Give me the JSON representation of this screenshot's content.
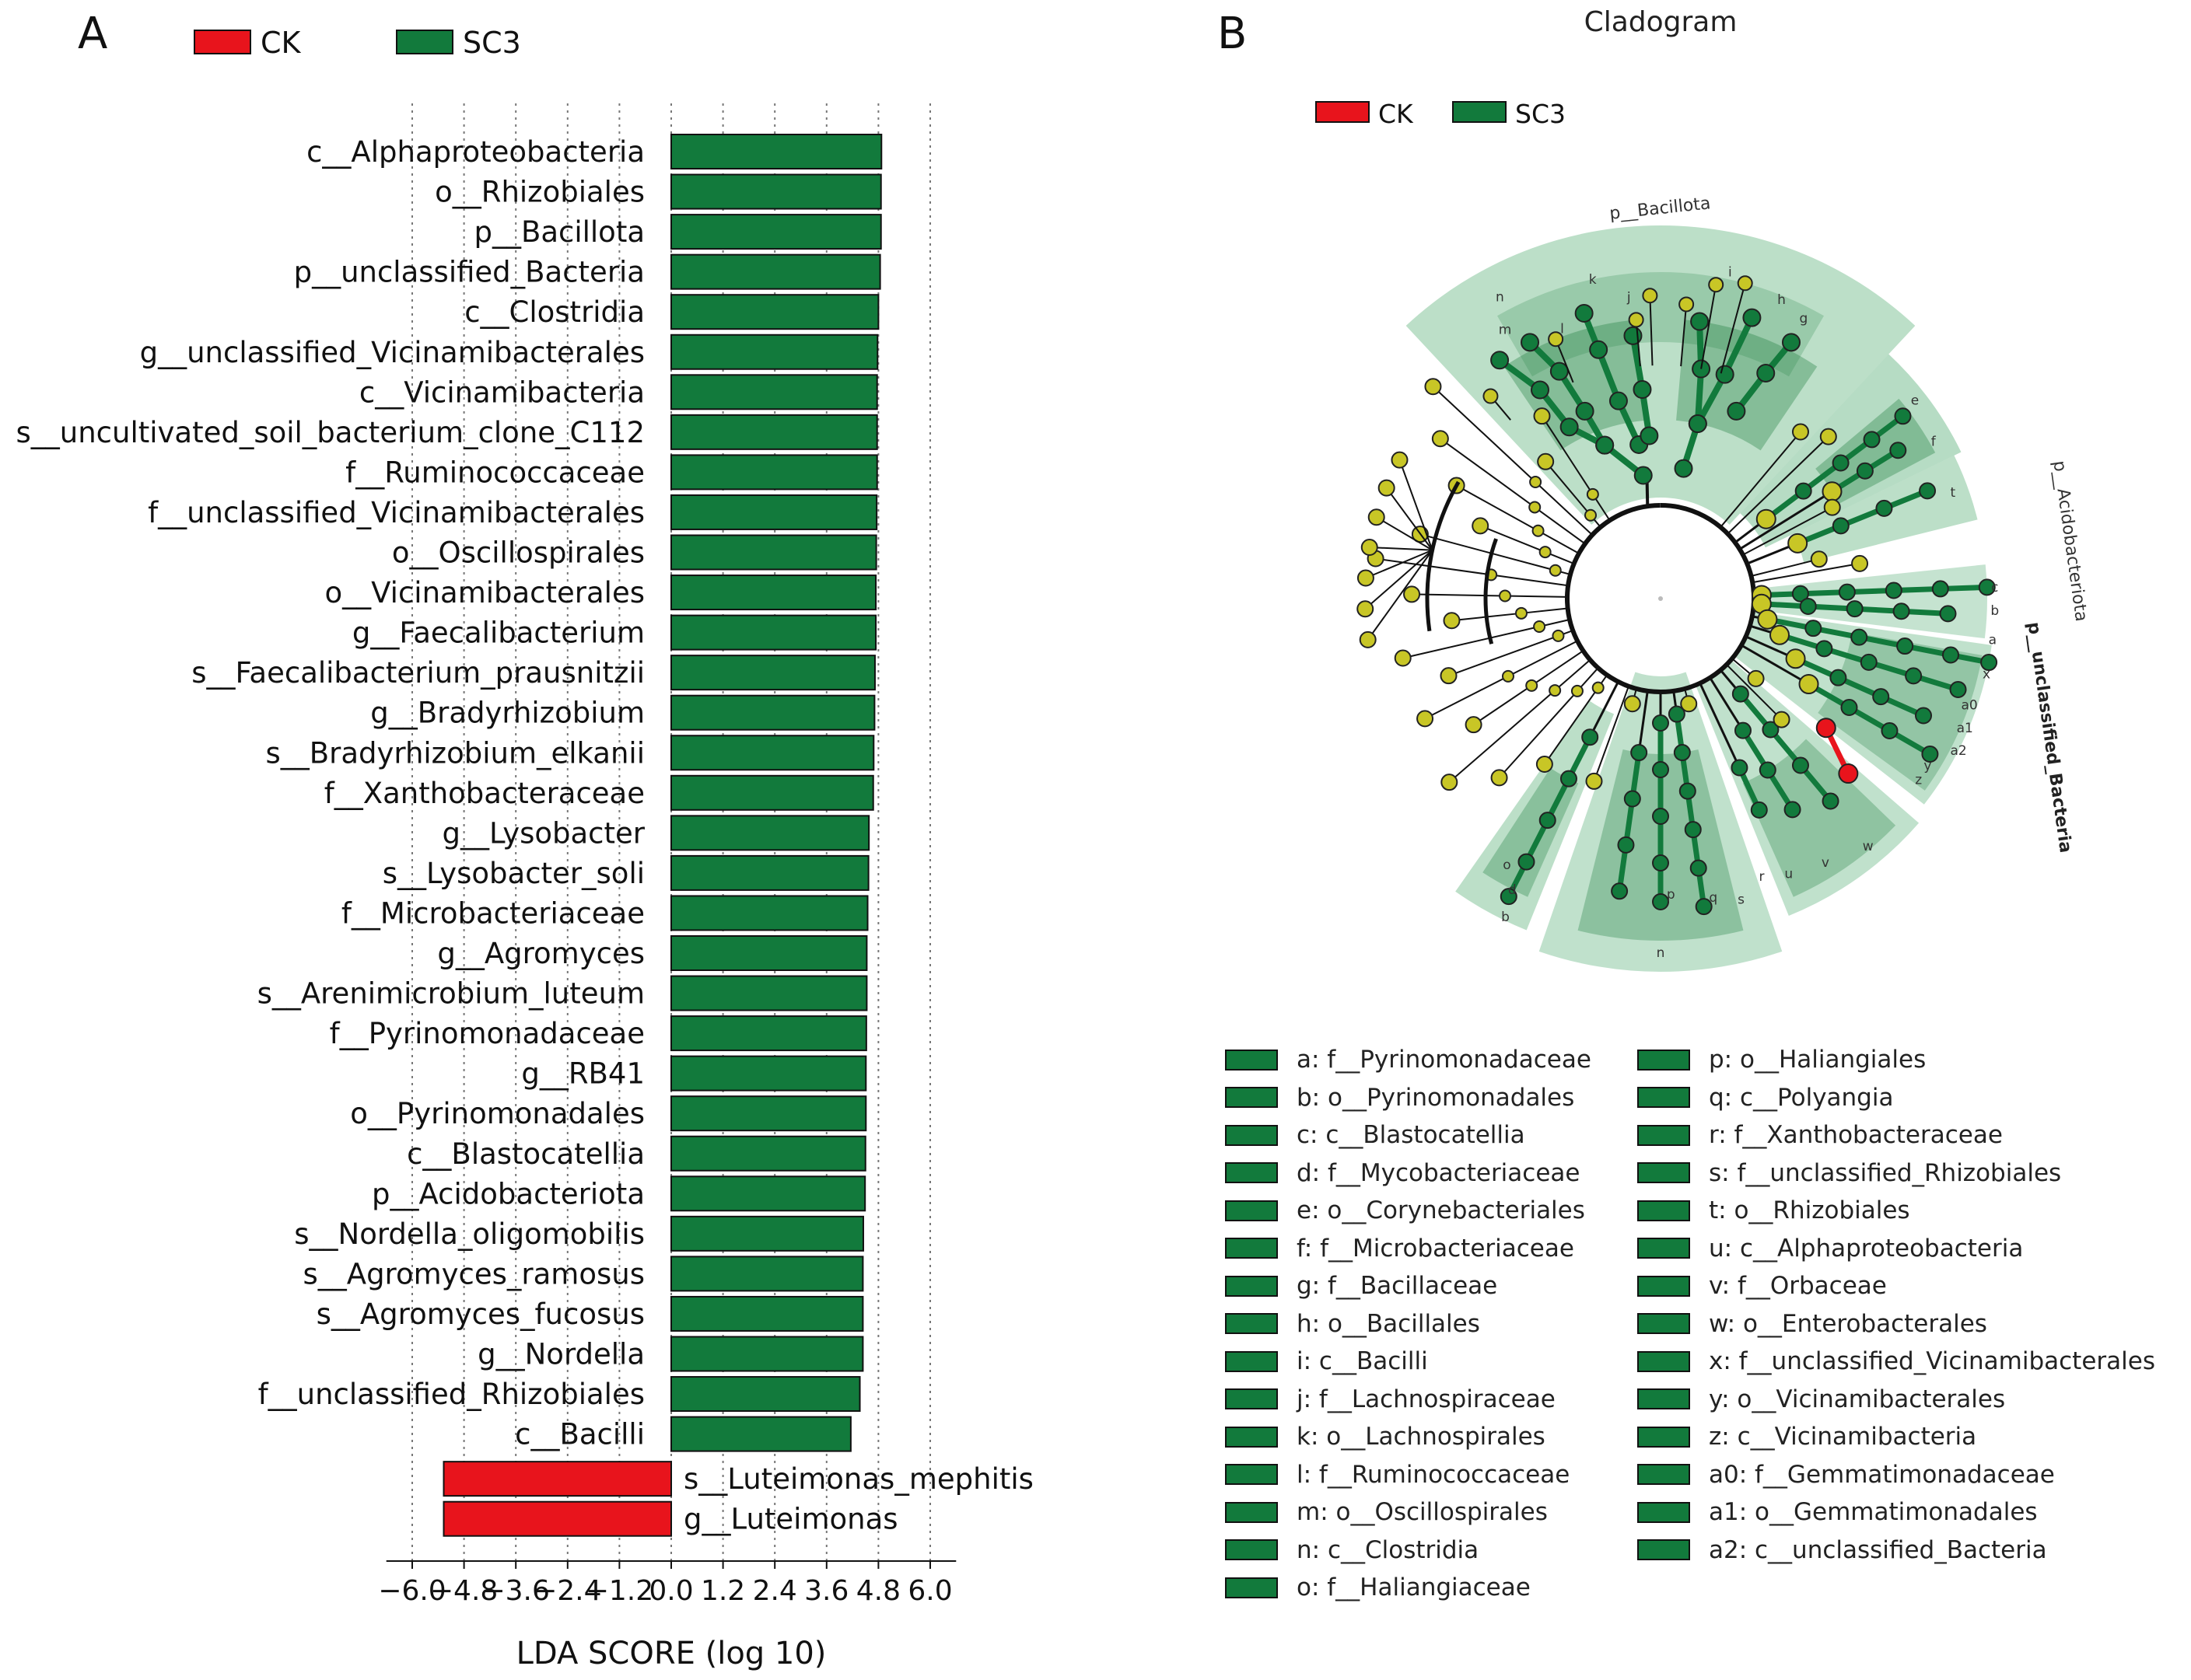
{
  "panel_a_label": "A",
  "panel_b_label": "B",
  "legend_a": [
    {
      "label": "CK",
      "color": "#e8141c"
    },
    {
      "label": "SC3",
      "color": "#127a3c"
    }
  ],
  "chart_data": {
    "type": "bar",
    "orientation": "horizontal",
    "xlabel": "LDA SCORE (log 10)",
    "xlim": [
      -6.0,
      6.0
    ],
    "xticks": [
      "-6.0",
      "-4.8",
      "-3.6",
      "-2.4",
      "-1.2",
      "0.0",
      "1.2",
      "2.4",
      "3.6",
      "4.8",
      "6.0"
    ],
    "grid": "vertical dotted",
    "series": [
      {
        "name": "SC3",
        "color": "#127a3c",
        "categories": [
          "c__Alphaproteobacteria",
          "o__Rhizobiales",
          "p__Bacillota",
          "p__unclassified_Bacteria",
          "c__Clostridia",
          "g__unclassified_Vicinamibacterales",
          "c__Vicinamibacteria",
          "s__uncultivated_soil_bacterium_clone_C112",
          "f__Ruminococcaceae",
          "f__unclassified_Vicinamibacterales",
          "o__Oscillospirales",
          "o__Vicinamibacterales",
          "g__Faecalibacterium",
          "s__Faecalibacterium_prausnitzii",
          "g__Bradyrhizobium",
          "s__Bradyrhizobium_elkanii",
          "f__Xanthobacteraceae",
          "g__Lysobacter",
          "s__Lysobacter_soli",
          "f__Microbacteriaceae",
          "g__Agromyces",
          "s__Arenimicrobium_luteum",
          "f__Pyrinomonadaceae",
          "g__RB41",
          "o__Pyrinomonadales",
          "c__Blastocatellia",
          "p__Acidobacteriota",
          "s__Nordella_oligomobilis",
          "s__Agromyces_ramosus",
          "s__Agromyces_fucosus",
          "g__Nordella",
          "f__unclassified_Rhizobiales",
          "c__Bacilli"
        ],
        "values": [
          4.87,
          4.86,
          4.86,
          4.84,
          4.8,
          4.78,
          4.77,
          4.77,
          4.77,
          4.76,
          4.75,
          4.74,
          4.74,
          4.72,
          4.71,
          4.69,
          4.68,
          4.58,
          4.57,
          4.55,
          4.53,
          4.53,
          4.52,
          4.51,
          4.51,
          4.5,
          4.49,
          4.45,
          4.44,
          4.44,
          4.44,
          4.37,
          4.16
        ]
      },
      {
        "name": "CK",
        "color": "#e8141c",
        "categories": [
          "s__Luteimonas_mephitis",
          "g__Luteimonas"
        ],
        "values": [
          -5.27,
          -5.27
        ]
      }
    ]
  },
  "cladogram": {
    "title": "Cladogram",
    "legend": [
      {
        "label": "CK",
        "color": "#e8141c"
      },
      {
        "label": "SC3",
        "color": "#127a3c"
      }
    ],
    "phylum_labels": [
      "p__Bacillota",
      "p__Acidobacteriota",
      "p__unclassified_Bacteria"
    ],
    "clade_letters": [
      "n",
      "k",
      "m",
      "j",
      "l",
      "i",
      "h",
      "g",
      "e",
      "f",
      "t",
      "c",
      "b",
      "a",
      "x",
      "a0",
      "a1",
      "a2",
      "y",
      "z",
      "w",
      "v",
      "u",
      "r",
      "s",
      "q",
      "p",
      "d",
      "o",
      "b",
      "n"
    ],
    "key_left": [
      "a: f__Pyrinomonadaceae",
      "b: o__Pyrinomonadales",
      "c: c__Blastocatellia",
      "d: f__Mycobacteriaceae",
      "e: o__Corynebacteriales",
      "f: f__Microbacteriaceae",
      "g: f__Bacillaceae",
      "h: o__Bacillales",
      "i: c__Bacilli",
      "j: f__Lachnospiraceae",
      "k: o__Lachnospirales",
      "l: f__Ruminococcaceae",
      "m: o__Oscillospirales",
      "n: c__Clostridia",
      "o: f__Haliangiaceae"
    ],
    "key_right": [
      "p: o__Haliangiales",
      "q: c__Polyangia",
      "r: f__Xanthobacteraceae",
      "s: f__unclassified_Rhizobiales",
      "t: o__Rhizobiales",
      "u: c__Alphaproteobacteria",
      "v: f__Orbaceae",
      "w: o__Enterobacterales",
      "x: f__unclassified_Vicinamibacterales",
      "y: o__Vicinamibacterales",
      "z: c__Vicinamibacteria",
      "a0: f__Gemmatimonadaceae",
      "a1: o__Gemmatimonadales",
      "a2: c__unclassified_Bacteria"
    ]
  }
}
